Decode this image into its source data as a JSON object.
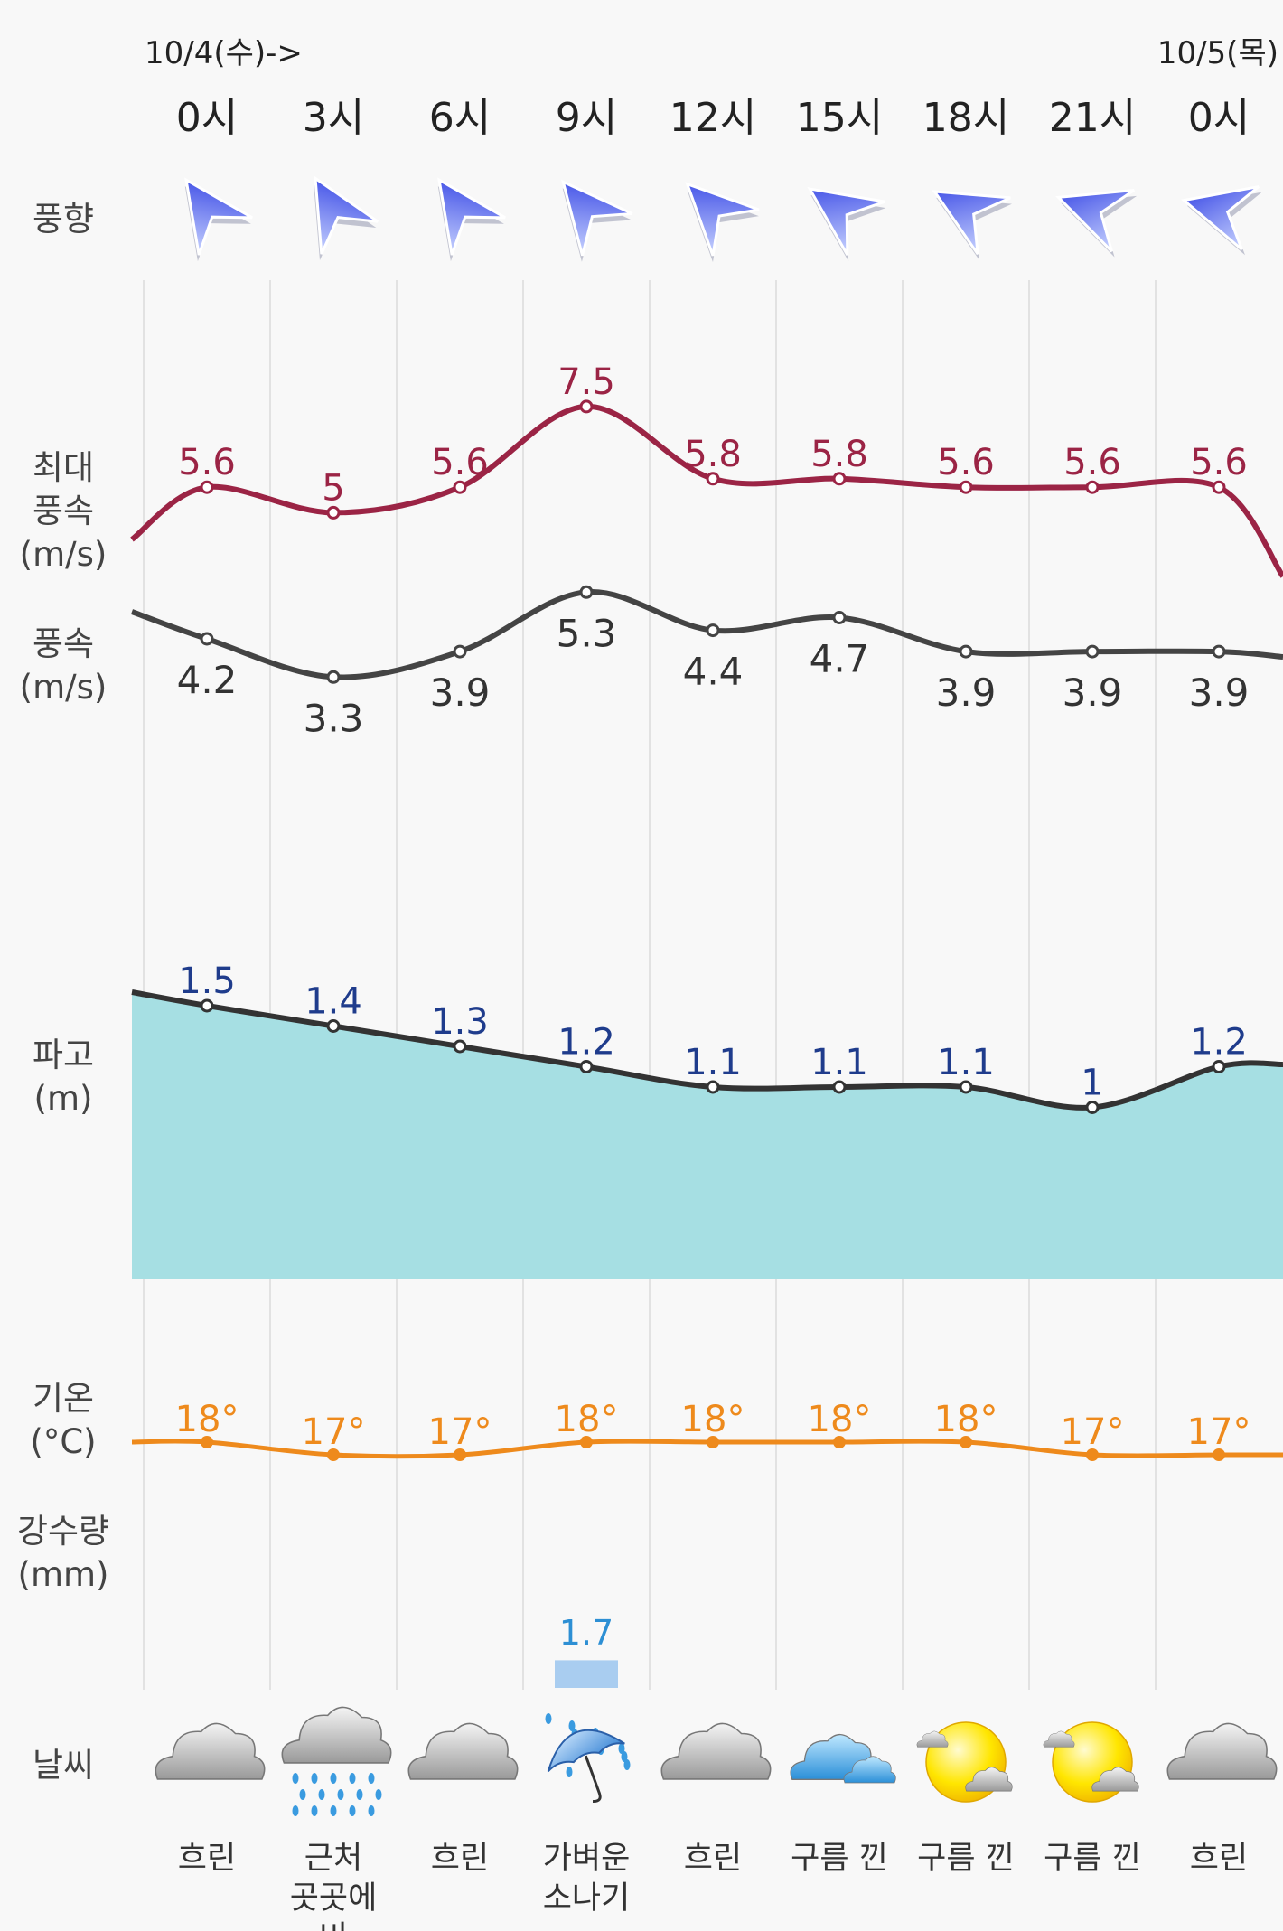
{
  "chart_data": {
    "type": "line",
    "title": "",
    "date_start": "10/4(수)->",
    "date_end": "10/5(목)",
    "hours": [
      "0시",
      "3시",
      "6시",
      "9시",
      "12시",
      "15시",
      "18시",
      "21시",
      "0시"
    ],
    "row_labels": {
      "wind_direction": "풍향",
      "gust": [
        "최대",
        "풍속",
        "(m/s)"
      ],
      "wind_speed": [
        "풍속",
        "(m/s)"
      ],
      "wave": [
        "파고",
        "(m)"
      ],
      "temperature": [
        "기온",
        "(°C)"
      ],
      "precipitation": [
        "강수량",
        "(mm)"
      ],
      "weather": "날씨"
    },
    "wind_direction_deg": [
      235,
      240,
      235,
      230,
      225,
      215,
      210,
      200,
      195
    ],
    "series": [
      {
        "name": "최대풍속 (m/s)",
        "unit": "m/s",
        "color": "#9b2445",
        "values": [
          5.6,
          5,
          5.6,
          7.5,
          5.8,
          5.8,
          5.6,
          5.6,
          5.6
        ],
        "labels": [
          "5.6",
          "5",
          "5.6",
          "7.5",
          "5.8",
          "5.8",
          "5.6",
          "5.6",
          "5.6"
        ]
      },
      {
        "name": "풍속 (m/s)",
        "unit": "m/s",
        "color": "#444444",
        "values": [
          4.2,
          3.3,
          3.9,
          5.3,
          4.4,
          4.7,
          3.9,
          3.9,
          3.9
        ],
        "labels": [
          "4.2",
          "3.3",
          "3.9",
          "5.3",
          "4.4",
          "4.7",
          "3.9",
          "3.9",
          "3.9"
        ]
      },
      {
        "name": "파고 (m)",
        "unit": "m",
        "color": "#333333",
        "fill": "#a6dfe3",
        "label_color": "#1f3c8c",
        "values": [
          1.5,
          1.4,
          1.3,
          1.2,
          1.1,
          1.1,
          1.1,
          1.0,
          1.2
        ],
        "labels": [
          "1.5",
          "1.4",
          "1.3",
          "1.2",
          "1.1",
          "1.1",
          "1.1",
          "1",
          "1.2"
        ]
      },
      {
        "name": "기온 (°C)",
        "unit": "°C",
        "color": "#ee8a1c",
        "values": [
          18,
          17,
          17,
          18,
          18,
          18,
          18,
          17,
          17
        ],
        "labels": [
          "18°",
          "17°",
          "17°",
          "18°",
          "18°",
          "18°",
          "18°",
          "17°",
          "17°"
        ]
      },
      {
        "name": "강수량 (mm)",
        "unit": "mm",
        "color": "#a9cdf0",
        "label_color": "#2d8fd4",
        "values": [
          null,
          null,
          null,
          1.7,
          null,
          null,
          null,
          null,
          null
        ],
        "labels": [
          "",
          "",
          "",
          "1.7",
          "",
          "",
          "",
          "",
          ""
        ]
      }
    ],
    "weather": [
      {
        "icon": "cloudy-icon",
        "text": [
          "흐린"
        ]
      },
      {
        "icon": "rain-icon",
        "text": [
          "근처",
          "곳곳에",
          "비"
        ]
      },
      {
        "icon": "cloudy-icon",
        "text": [
          "흐린"
        ]
      },
      {
        "icon": "umbrella-rain-icon",
        "text": [
          "가벼운",
          "소나기"
        ]
      },
      {
        "icon": "cloudy-icon",
        "text": [
          "흐린"
        ]
      },
      {
        "icon": "blue-cloud-icon",
        "text": [
          "구름 낀"
        ]
      },
      {
        "icon": "sun-cloud-icon",
        "text": [
          "구름 낀"
        ]
      },
      {
        "icon": "sun-cloud-icon",
        "text": [
          "구름 낀"
        ]
      },
      {
        "icon": "cloudy-icon",
        "text": [
          "흐린"
        ]
      }
    ]
  }
}
